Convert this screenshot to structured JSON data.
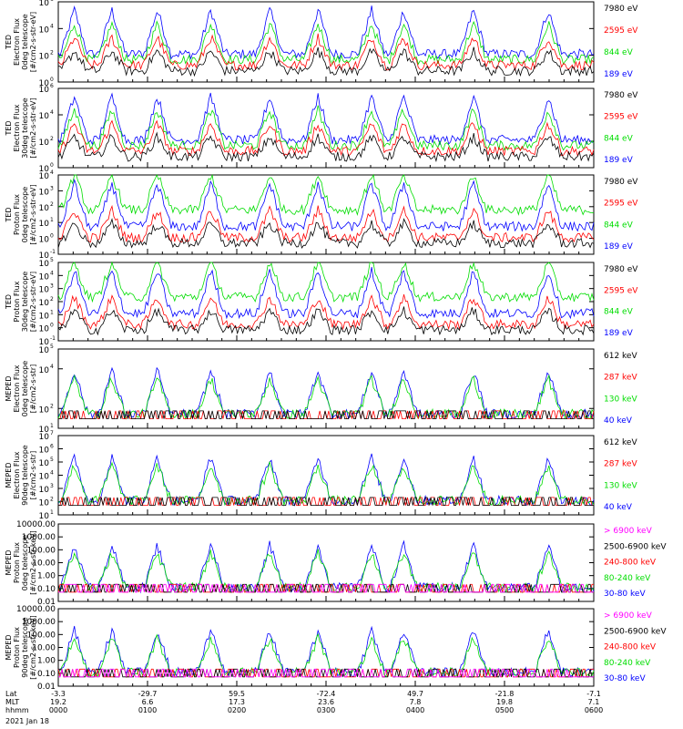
{
  "chart_data": {
    "type": "line",
    "x_ticks": [
      {
        "Lat": "-3.3",
        "MLT": "19.2",
        "hhmm": "0000"
      },
      {
        "Lat": "-29.7",
        "MLT": "6.6",
        "hhmm": "0100"
      },
      {
        "Lat": "59.5",
        "MLT": "17.3",
        "hhmm": "0200"
      },
      {
        "Lat": "-72.4",
        "MLT": "23.6",
        "hhmm": "0300"
      },
      {
        "Lat": "49.7",
        "MLT": "7.8",
        "hhmm": "0400"
      },
      {
        "Lat": "-21.8",
        "MLT": "19.8",
        "hhmm": "0500"
      },
      {
        "Lat": "-7.1",
        "MLT": "7.1",
        "hhmm": "0600"
      }
    ],
    "x_row_labels": [
      "Lat",
      "MLT",
      "hhmm"
    ],
    "date": "2021 Jan 18",
    "colors": {
      "blue": "#0000ff",
      "red": "#ff0000",
      "green": "#00dd00",
      "black": "#000000",
      "magenta": "#ff00ff"
    },
    "panels": [
      {
        "ylabel": [
          "TED",
          "Electron Flux",
          "0deg telescope",
          "[#/cm2-s-str-eV]"
        ],
        "yscale": "log",
        "ylim_exp": [
          0,
          6
        ],
        "tick_labels": [
          {
            "exp": 0,
            "base": "10",
            "sup": "0"
          },
          {
            "exp": 2,
            "base": "10",
            "sup": "2"
          },
          {
            "exp": 4,
            "base": "10",
            "sup": "4"
          },
          {
            "exp": 6,
            "base": "10",
            "sup": "6"
          }
        ],
        "legend": [
          {
            "label": "7980 eV",
            "color": "#000000"
          },
          {
            "label": "2595 eV",
            "color": "#ff0000"
          },
          {
            "label": "844 eV",
            "color": "#00dd00"
          },
          {
            "label": "189 eV",
            "color": "#0000ff"
          }
        ]
      },
      {
        "ylabel": [
          "TED",
          "Electron Flux",
          "30deg telescope",
          "[#/cm2-s-str-eV]"
        ],
        "yscale": "log",
        "ylim_exp": [
          0,
          6
        ],
        "tick_labels": [
          {
            "exp": 0,
            "base": "10",
            "sup": "0"
          },
          {
            "exp": 2,
            "base": "10",
            "sup": "2"
          },
          {
            "exp": 4,
            "base": "10",
            "sup": "4"
          },
          {
            "exp": 6,
            "base": "10",
            "sup": "6"
          }
        ],
        "legend": [
          {
            "label": "7980 eV",
            "color": "#000000"
          },
          {
            "label": "2595 eV",
            "color": "#ff0000"
          },
          {
            "label": "844 eV",
            "color": "#00dd00"
          },
          {
            "label": "189 eV",
            "color": "#0000ff"
          }
        ]
      },
      {
        "ylabel": [
          "TED",
          "Proton Flux",
          "0deg telescope",
          "[#/cm2-s-str-eV]"
        ],
        "yscale": "log",
        "ylim_exp": [
          -1,
          4
        ],
        "tick_labels": [
          {
            "exp": -1,
            "base": "10",
            "sup": "-1"
          },
          {
            "exp": 0,
            "base": "10",
            "sup": "0"
          },
          {
            "exp": 1,
            "base": "10",
            "sup": "1"
          },
          {
            "exp": 2,
            "base": "10",
            "sup": "2"
          },
          {
            "exp": 3,
            "base": "10",
            "sup": "3"
          },
          {
            "exp": 4,
            "base": "10",
            "sup": "4"
          }
        ],
        "legend": [
          {
            "label": "7980 eV",
            "color": "#000000"
          },
          {
            "label": "2595 eV",
            "color": "#ff0000"
          },
          {
            "label": "844 eV",
            "color": "#00dd00"
          },
          {
            "label": "189 eV",
            "color": "#0000ff"
          }
        ]
      },
      {
        "ylabel": [
          "TED",
          "Proton Flux",
          "30deg telescope",
          "[#/cm2-s-str-eV]"
        ],
        "yscale": "log",
        "ylim_exp": [
          -1,
          5
        ],
        "tick_labels": [
          {
            "exp": -1,
            "base": "10",
            "sup": "-1"
          },
          {
            "exp": 0,
            "base": "10",
            "sup": "0"
          },
          {
            "exp": 1,
            "base": "10",
            "sup": "1"
          },
          {
            "exp": 2,
            "base": "10",
            "sup": "2"
          },
          {
            "exp": 3,
            "base": "10",
            "sup": "3"
          },
          {
            "exp": 4,
            "base": "10",
            "sup": "4"
          },
          {
            "exp": 5,
            "base": "10",
            "sup": "5"
          }
        ],
        "legend": [
          {
            "label": "7980 eV",
            "color": "#000000"
          },
          {
            "label": "2595 eV",
            "color": "#ff0000"
          },
          {
            "label": "844 eV",
            "color": "#00dd00"
          },
          {
            "label": "189 eV",
            "color": "#0000ff"
          }
        ]
      },
      {
        "ylabel": [
          "MEPED",
          "Electron Flux",
          "0deg telescope",
          "[#/cm2-s-str]"
        ],
        "yscale": "log",
        "ylim_exp": [
          1,
          5
        ],
        "tick_labels": [
          {
            "exp": 1,
            "base": "10",
            "sup": "1"
          },
          {
            "exp": 2,
            "base": "10",
            "sup": "2"
          },
          {
            "exp": 4,
            "base": "10",
            "sup": "4"
          },
          {
            "exp": 5,
            "base": "10",
            "sup": "5"
          }
        ],
        "legend": [
          {
            "label": "612 keV",
            "color": "#000000"
          },
          {
            "label": "287 keV",
            "color": "#ff0000"
          },
          {
            "label": "130 keV",
            "color": "#00dd00"
          },
          {
            "label": "40 keV",
            "color": "#0000ff"
          }
        ]
      },
      {
        "ylabel": [
          "MEPED",
          "Electron Flux",
          "90deg telescope",
          "[#/cm2-s-str]"
        ],
        "yscale": "log",
        "ylim_exp": [
          1,
          7
        ],
        "tick_labels": [
          {
            "exp": 1,
            "base": "10",
            "sup": "1"
          },
          {
            "exp": 2,
            "base": "10",
            "sup": "2"
          },
          {
            "exp": 3,
            "base": "10",
            "sup": "3"
          },
          {
            "exp": 4,
            "base": "10",
            "sup": "4"
          },
          {
            "exp": 5,
            "base": "10",
            "sup": "5"
          },
          {
            "exp": 6,
            "base": "10",
            "sup": "6"
          },
          {
            "exp": 7,
            "base": "10",
            "sup": "7"
          }
        ],
        "legend": [
          {
            "label": "612 keV",
            "color": "#000000"
          },
          {
            "label": "287 keV",
            "color": "#ff0000"
          },
          {
            "label": "130 keV",
            "color": "#00dd00"
          },
          {
            "label": "40 keV",
            "color": "#0000ff"
          }
        ]
      },
      {
        "ylabel": [
          "MEPED",
          "Proton Flux",
          "0deg telescope",
          "[#/cm2-s-str-keV]"
        ],
        "yscale": "log",
        "ylim_exp": [
          -2,
          4
        ],
        "tick_labels": [
          {
            "exp": -2,
            "text": "0.01"
          },
          {
            "exp": -1,
            "text": "0.10"
          },
          {
            "exp": 0,
            "text": "1.00"
          },
          {
            "exp": 1,
            "text": "10.00"
          },
          {
            "exp": 2,
            "text": "100.00"
          },
          {
            "exp": 3,
            "text": "1000.00"
          },
          {
            "exp": 4,
            "text": "10000.00"
          }
        ],
        "legend": [
          {
            "label": "> 6900 keV",
            "color": "#ff00ff"
          },
          {
            "label": "2500-6900 keV",
            "color": "#000000"
          },
          {
            "label": "240-800 keV",
            "color": "#ff0000"
          },
          {
            "label": "80-240 keV",
            "color": "#00dd00"
          },
          {
            "label": "30-80 keV",
            "color": "#0000ff"
          }
        ]
      },
      {
        "ylabel": [
          "MEPED",
          "Proton Flux",
          "90deg telescope",
          "[#/cm2-s-str-keV]"
        ],
        "yscale": "log",
        "ylim_exp": [
          -2,
          4
        ],
        "tick_labels": [
          {
            "exp": -2,
            "text": "0.01"
          },
          {
            "exp": -1,
            "text": "0.10"
          },
          {
            "exp": 0,
            "text": "1.00"
          },
          {
            "exp": 1,
            "text": "10.00"
          },
          {
            "exp": 2,
            "text": "100.00"
          },
          {
            "exp": 3,
            "text": "1000.00"
          },
          {
            "exp": 4,
            "text": "10000.00"
          }
        ],
        "legend": [
          {
            "label": "> 6900 keV",
            "color": "#ff00ff"
          },
          {
            "label": "2500-6900 keV",
            "color": "#000000"
          },
          {
            "label": "240-800 keV",
            "color": "#ff0000"
          },
          {
            "label": "80-240 keV",
            "color": "#00dd00"
          },
          {
            "label": "30-80 keV",
            "color": "#0000ff"
          }
        ]
      }
    ]
  }
}
